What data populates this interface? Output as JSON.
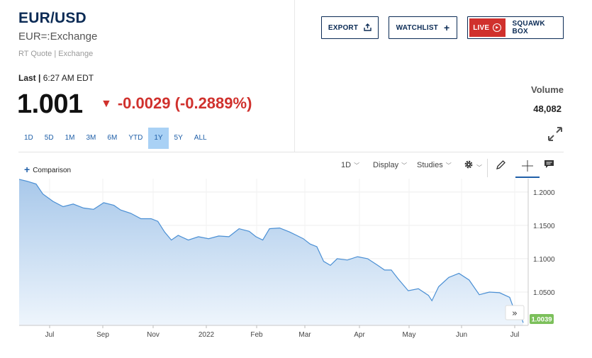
{
  "quote": {
    "symbol": "EUR/USD",
    "exchange": "EUR=:Exchange",
    "source": "RT Quote | Exchange",
    "last_label": "Last |",
    "last_time": "6:27 AM EDT",
    "price": "1.001",
    "change": "-0.0029 (-0.2889%)",
    "direction": "down",
    "change_color": "#d0312d"
  },
  "buttons": {
    "export": "EXPORT",
    "watchlist": "WATCHLIST",
    "live": "LIVE",
    "squawk": "SQUAWK BOX"
  },
  "volume": {
    "label": "Volume",
    "value": "48,082"
  },
  "ranges": [
    {
      "label": "1D"
    },
    {
      "label": "5D"
    },
    {
      "label": "1M"
    },
    {
      "label": "3M"
    },
    {
      "label": "6M"
    },
    {
      "label": "YTD"
    },
    {
      "label": "1Y",
      "active": true
    },
    {
      "label": "5Y"
    },
    {
      "label": "ALL"
    }
  ],
  "toolbar": {
    "comparison": "Comparison",
    "interval": "1D",
    "display": "Display",
    "studies": "Studies"
  },
  "chart_data": {
    "type": "area",
    "x_ticks": [
      "Jul",
      "Sep",
      "Nov",
      "2022",
      "Feb",
      "Mar",
      "Apr",
      "May",
      "Jun",
      "Jul"
    ],
    "y_ticks": [
      1.2,
      1.15,
      1.1,
      1.05
    ],
    "y_tick_labels": [
      "1.2000",
      "1.1500",
      "1.1000",
      "1.0500"
    ],
    "ylim": [
      1.0,
      1.22
    ],
    "x_range_months": [
      0,
      12.6
    ],
    "current_value": 1.0039,
    "current_label": "1.0039",
    "points": [
      [
        0.0,
        1.219
      ],
      [
        0.25,
        1.216
      ],
      [
        0.5,
        1.212
      ],
      [
        0.7,
        1.197
      ],
      [
        1.0,
        1.186
      ],
      [
        1.3,
        1.178
      ],
      [
        1.6,
        1.182
      ],
      [
        1.9,
        1.176
      ],
      [
        2.2,
        1.174
      ],
      [
        2.5,
        1.184
      ],
      [
        2.8,
        1.18
      ],
      [
        3.0,
        1.173
      ],
      [
        3.3,
        1.168
      ],
      [
        3.6,
        1.16
      ],
      [
        3.9,
        1.16
      ],
      [
        4.1,
        1.156
      ],
      [
        4.3,
        1.14
      ],
      [
        4.5,
        1.128
      ],
      [
        4.7,
        1.135
      ],
      [
        5.0,
        1.128
      ],
      [
        5.3,
        1.133
      ],
      [
        5.6,
        1.13
      ],
      [
        5.9,
        1.134
      ],
      [
        6.2,
        1.133
      ],
      [
        6.5,
        1.145
      ],
      [
        6.8,
        1.141
      ],
      [
        7.0,
        1.133
      ],
      [
        7.2,
        1.128
      ],
      [
        7.4,
        1.145
      ],
      [
        7.7,
        1.146
      ],
      [
        8.0,
        1.14
      ],
      [
        8.2,
        1.135
      ],
      [
        8.4,
        1.13
      ],
      [
        8.6,
        1.122
      ],
      [
        8.8,
        1.118
      ],
      [
        9.0,
        1.096
      ],
      [
        9.2,
        1.09
      ],
      [
        9.4,
        1.1
      ],
      [
        9.7,
        1.098
      ],
      [
        10.0,
        1.103
      ],
      [
        10.3,
        1.1
      ],
      [
        10.6,
        1.09
      ],
      [
        10.8,
        1.083
      ],
      [
        11.0,
        1.083
      ],
      [
        11.2,
        1.07
      ],
      [
        11.5,
        1.052
      ],
      [
        11.8,
        1.055
      ],
      [
        12.1,
        1.045
      ],
      [
        12.2,
        1.037
      ],
      [
        12.4,
        1.058
      ],
      [
        12.7,
        1.072
      ],
      [
        13.0,
        1.078
      ],
      [
        13.3,
        1.068
      ],
      [
        13.6,
        1.046
      ],
      [
        13.9,
        1.05
      ],
      [
        14.2,
        1.049
      ],
      [
        14.5,
        1.042
      ],
      [
        14.6,
        1.028
      ],
      [
        14.8,
        1.019
      ],
      [
        14.9,
        1.0039
      ]
    ],
    "line_color": "#4a8fd4",
    "fill_top": "#a8c8ea",
    "fill_bottom": "#eef5fc"
  }
}
